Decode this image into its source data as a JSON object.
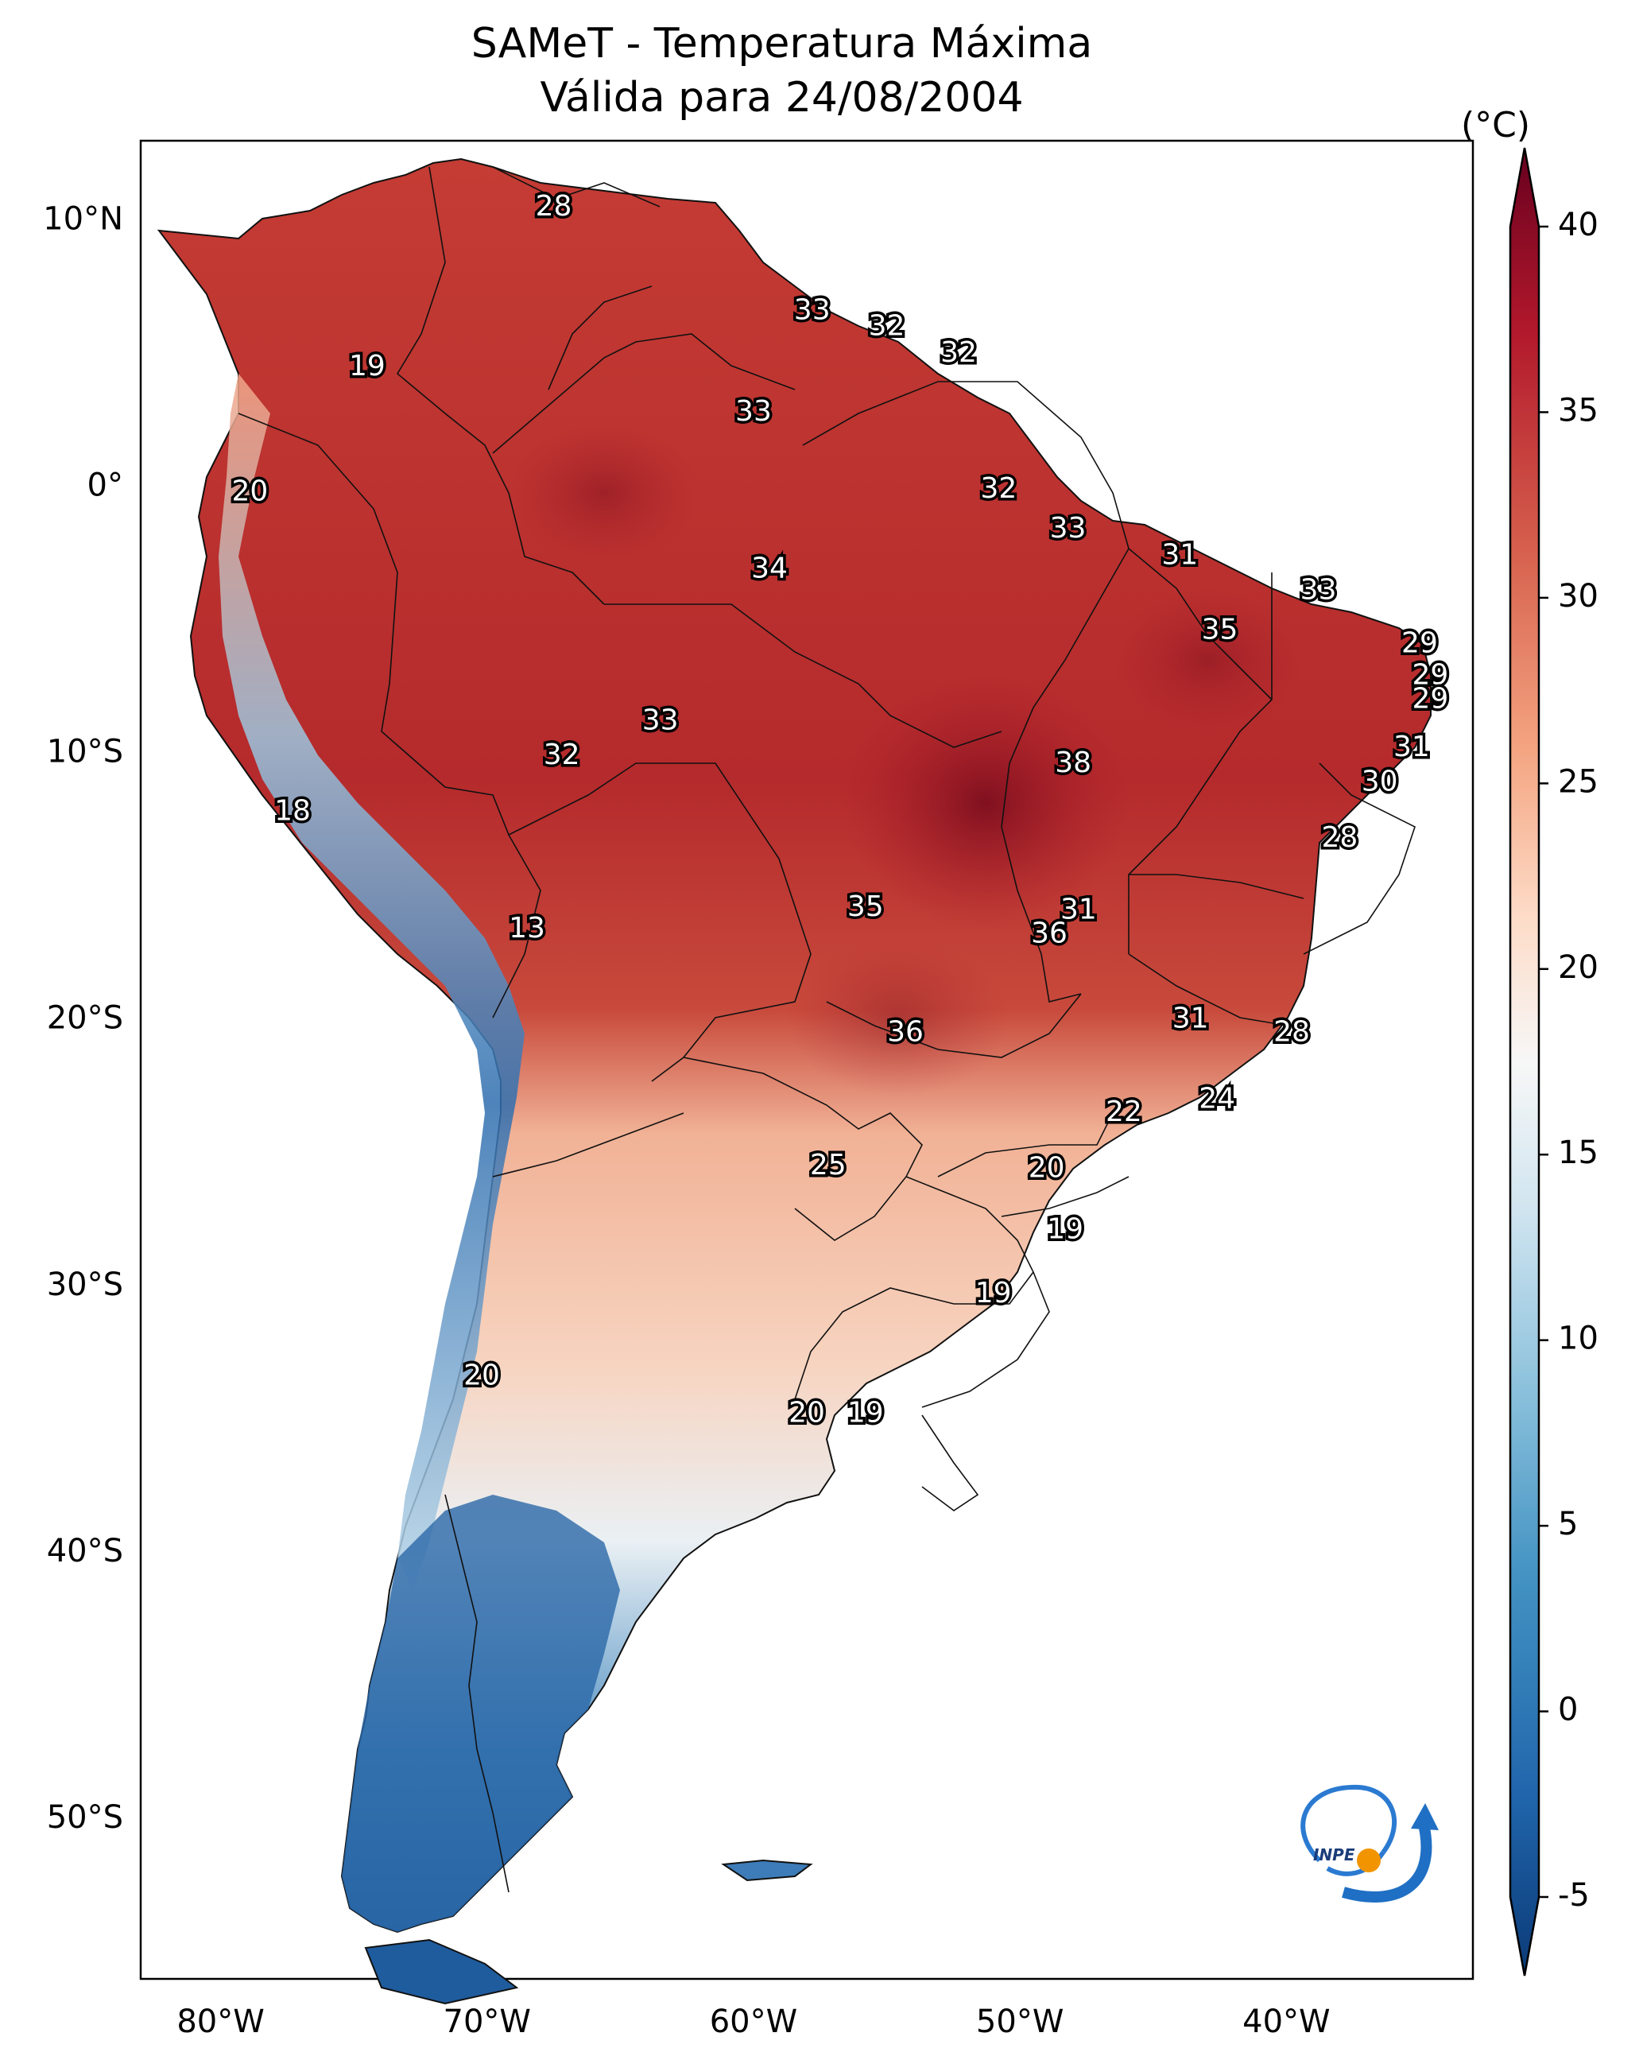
{
  "title_line1": "SAMeT - Temperatura Máxima",
  "title_line2": "Válida para 24/08/2004",
  "colorbar": {
    "unit": "(°C)",
    "ticks": [
      "40",
      "35",
      "30",
      "25",
      "20",
      "15",
      "10",
      "5",
      "0",
      "-5"
    ],
    "tick_values": [
      40,
      35,
      30,
      25,
      20,
      15,
      10,
      5,
      0,
      -5
    ],
    "range": [
      -5,
      40
    ],
    "extend": "both",
    "colormap": "RdBu_r",
    "colors": [
      "#08306b",
      "#2166ac",
      "#4393c3",
      "#92c5de",
      "#d1e5f0",
      "#f7f7f7",
      "#fddbc7",
      "#f4a582",
      "#d6604d",
      "#b2182b",
      "#67001f"
    ]
  },
  "axes": {
    "lat_labels": [
      "10°N",
      "0°",
      "10°S",
      "20°S",
      "30°S",
      "40°S",
      "50°S"
    ],
    "lat_values": [
      10,
      0,
      -10,
      -20,
      -30,
      -40,
      -50
    ],
    "lon_labels": [
      "80°W",
      "70°W",
      "60°W",
      "50°W",
      "40°W"
    ],
    "lon_values": [
      -80,
      -70,
      -60,
      -50,
      -40
    ],
    "lon_range": [
      -83,
      -33
    ],
    "lat_range": [
      -56,
      13
    ]
  },
  "map_labels": [
    {
      "text": "28",
      "lon": -67.5,
      "lat": 10.5
    },
    {
      "text": "19",
      "lon": -74.5,
      "lat": 4.5
    },
    {
      "text": "33",
      "lon": -57.8,
      "lat": 6.6
    },
    {
      "text": "32",
      "lon": -55.0,
      "lat": 6.0
    },
    {
      "text": "32",
      "lon": -52.3,
      "lat": 5.0
    },
    {
      "text": "33",
      "lon": -60.0,
      "lat": 2.8
    },
    {
      "text": "20",
      "lon": -78.9,
      "lat": -0.2
    },
    {
      "text": "32",
      "lon": -50.8,
      "lat": -0.1
    },
    {
      "text": "33",
      "lon": -48.2,
      "lat": -1.6
    },
    {
      "text": "34",
      "lon": -59.4,
      "lat": -3.1
    },
    {
      "text": "31",
      "lon": -44.0,
      "lat": -2.6
    },
    {
      "text": "33",
      "lon": -38.8,
      "lat": -3.9
    },
    {
      "text": "35",
      "lon": -42.5,
      "lat": -5.4
    },
    {
      "text": "29",
      "lon": -35.0,
      "lat": -5.9
    },
    {
      "text": "29",
      "lon": -34.6,
      "lat": -7.1
    },
    {
      "text": "29",
      "lon": -34.6,
      "lat": -8.0
    },
    {
      "text": "33",
      "lon": -63.5,
      "lat": -8.8
    },
    {
      "text": "32",
      "lon": -67.2,
      "lat": -10.1
    },
    {
      "text": "31",
      "lon": -35.3,
      "lat": -9.8
    },
    {
      "text": "38",
      "lon": -48.0,
      "lat": -10.4
    },
    {
      "text": "30",
      "lon": -36.5,
      "lat": -11.1
    },
    {
      "text": "18",
      "lon": -77.3,
      "lat": -12.2
    },
    {
      "text": "28",
      "lon": -38.0,
      "lat": -13.2
    },
    {
      "text": "13",
      "lon": -68.5,
      "lat": -16.6
    },
    {
      "text": "35",
      "lon": -55.8,
      "lat": -15.8
    },
    {
      "text": "31",
      "lon": -47.8,
      "lat": -15.9
    },
    {
      "text": "36",
      "lon": -48.9,
      "lat": -16.8
    },
    {
      "text": "31",
      "lon": -43.6,
      "lat": -20.0
    },
    {
      "text": "28",
      "lon": -39.8,
      "lat": -20.5
    },
    {
      "text": "36",
      "lon": -54.3,
      "lat": -20.5
    },
    {
      "text": "24",
      "lon": -42.6,
      "lat": -23.0
    },
    {
      "text": "22",
      "lon": -46.1,
      "lat": -23.5
    },
    {
      "text": "25",
      "lon": -57.2,
      "lat": -25.5
    },
    {
      "text": "20",
      "lon": -49.0,
      "lat": -25.6
    },
    {
      "text": "19",
      "lon": -48.3,
      "lat": -27.9
    },
    {
      "text": "19",
      "lon": -51.0,
      "lat": -30.3
    },
    {
      "text": "20",
      "lon": -70.2,
      "lat": -33.4
    },
    {
      "text": "20",
      "lon": -58.0,
      "lat": -34.8
    },
    {
      "text": "19",
      "lon": -55.8,
      "lat": -34.8
    }
  ],
  "logo": {
    "text": "INPE"
  }
}
